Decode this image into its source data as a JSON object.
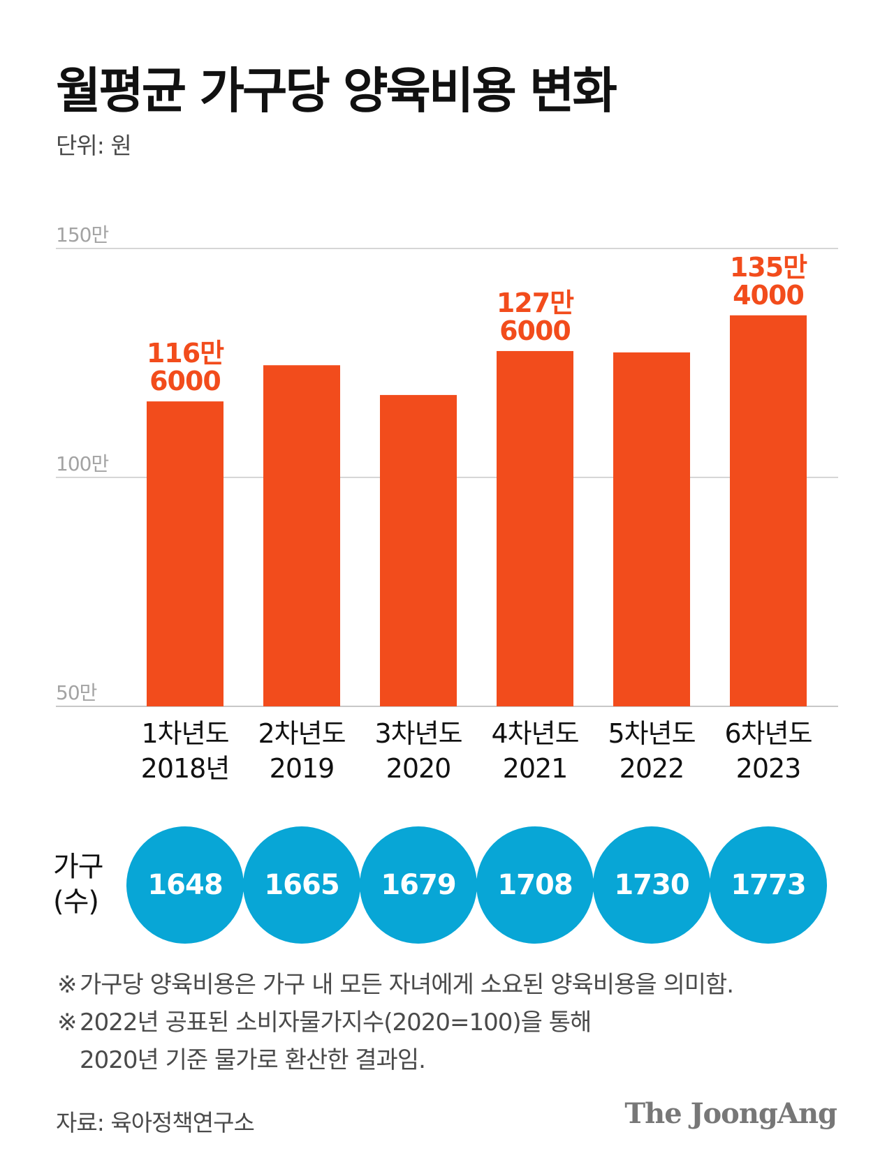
{
  "header": {
    "title": "월평균 가구당 양육비용 변화",
    "unit": "단위: 원"
  },
  "chart_data": {
    "type": "bar",
    "title": "월평균 가구당 양육비용 변화",
    "unit": "원",
    "ylim": [
      500000,
      1500000
    ],
    "yticks": [
      {
        "value": 500000,
        "label": "50만"
      },
      {
        "value": 1000000,
        "label": "100만"
      },
      {
        "value": 1500000,
        "label": "150만"
      }
    ],
    "categories": [
      [
        "1차년도",
        "2018년"
      ],
      [
        "2차년도",
        "2019"
      ],
      [
        "3차년도",
        "2020"
      ],
      [
        "4차년도",
        "2021"
      ],
      [
        "5차년도",
        "2022"
      ],
      [
        "6차년도",
        "2023"
      ]
    ],
    "values": [
      1166000,
      1245000,
      1180000,
      1276000,
      1273000,
      1354000
    ],
    "data_labels": [
      [
        "116만",
        "6000"
      ],
      null,
      null,
      [
        "127만",
        "6000"
      ],
      null,
      [
        "135만",
        "4000"
      ]
    ],
    "bar_color": "#f24c1c",
    "grid": true
  },
  "households": {
    "label_line1": "가구",
    "label_line2": "(수)",
    "values": [
      "1648",
      "1665",
      "1679",
      "1708",
      "1730",
      "1773"
    ],
    "color": "#08a6d6"
  },
  "notes": {
    "mark": "※",
    "note1": "가구당 양육비용은 가구 내 모든 자녀에게 소요된 양육비용을 의미함.",
    "note2_line1": "2022년 공표된 소비자물가지수(2020=100)을 통해",
    "note2_line2": "2020년 기준 물가로 환산한 결과임."
  },
  "footer": {
    "source": "자료: 육아정책연구소",
    "logo": "The JoongAng"
  }
}
